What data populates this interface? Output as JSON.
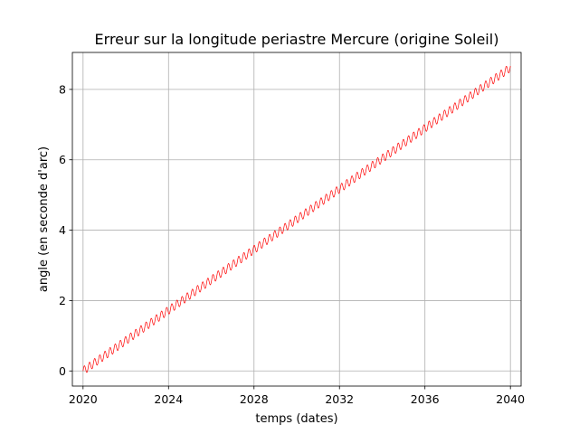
{
  "chart_data": {
    "type": "line",
    "title": "Erreur sur la longitude periastre Mercure (origine Soleil)",
    "xlabel": "temps (dates)",
    "ylabel": "angle (en seconde d'arc)",
    "x_range": [
      2020,
      2040
    ],
    "xlim": [
      2019.5,
      2040.5
    ],
    "ylim": [
      -0.43,
      9.05
    ],
    "x_ticks": [
      "2020",
      "2024",
      "2028",
      "2032",
      "2036",
      "2040"
    ],
    "y_ticks": [
      "0",
      "2",
      "4",
      "6",
      "8"
    ],
    "grid": true,
    "legend": "none",
    "series": [
      {
        "color": "#ff0000",
        "linear_trend": {
          "start": 0.0,
          "end": 8.62
        },
        "oscillation": {
          "period_years": 0.2408,
          "amplitude": 0.12
        }
      }
    ]
  },
  "colors": {
    "line": "#ff0000",
    "grid": "#b0b0b0",
    "axes": "#000000"
  }
}
